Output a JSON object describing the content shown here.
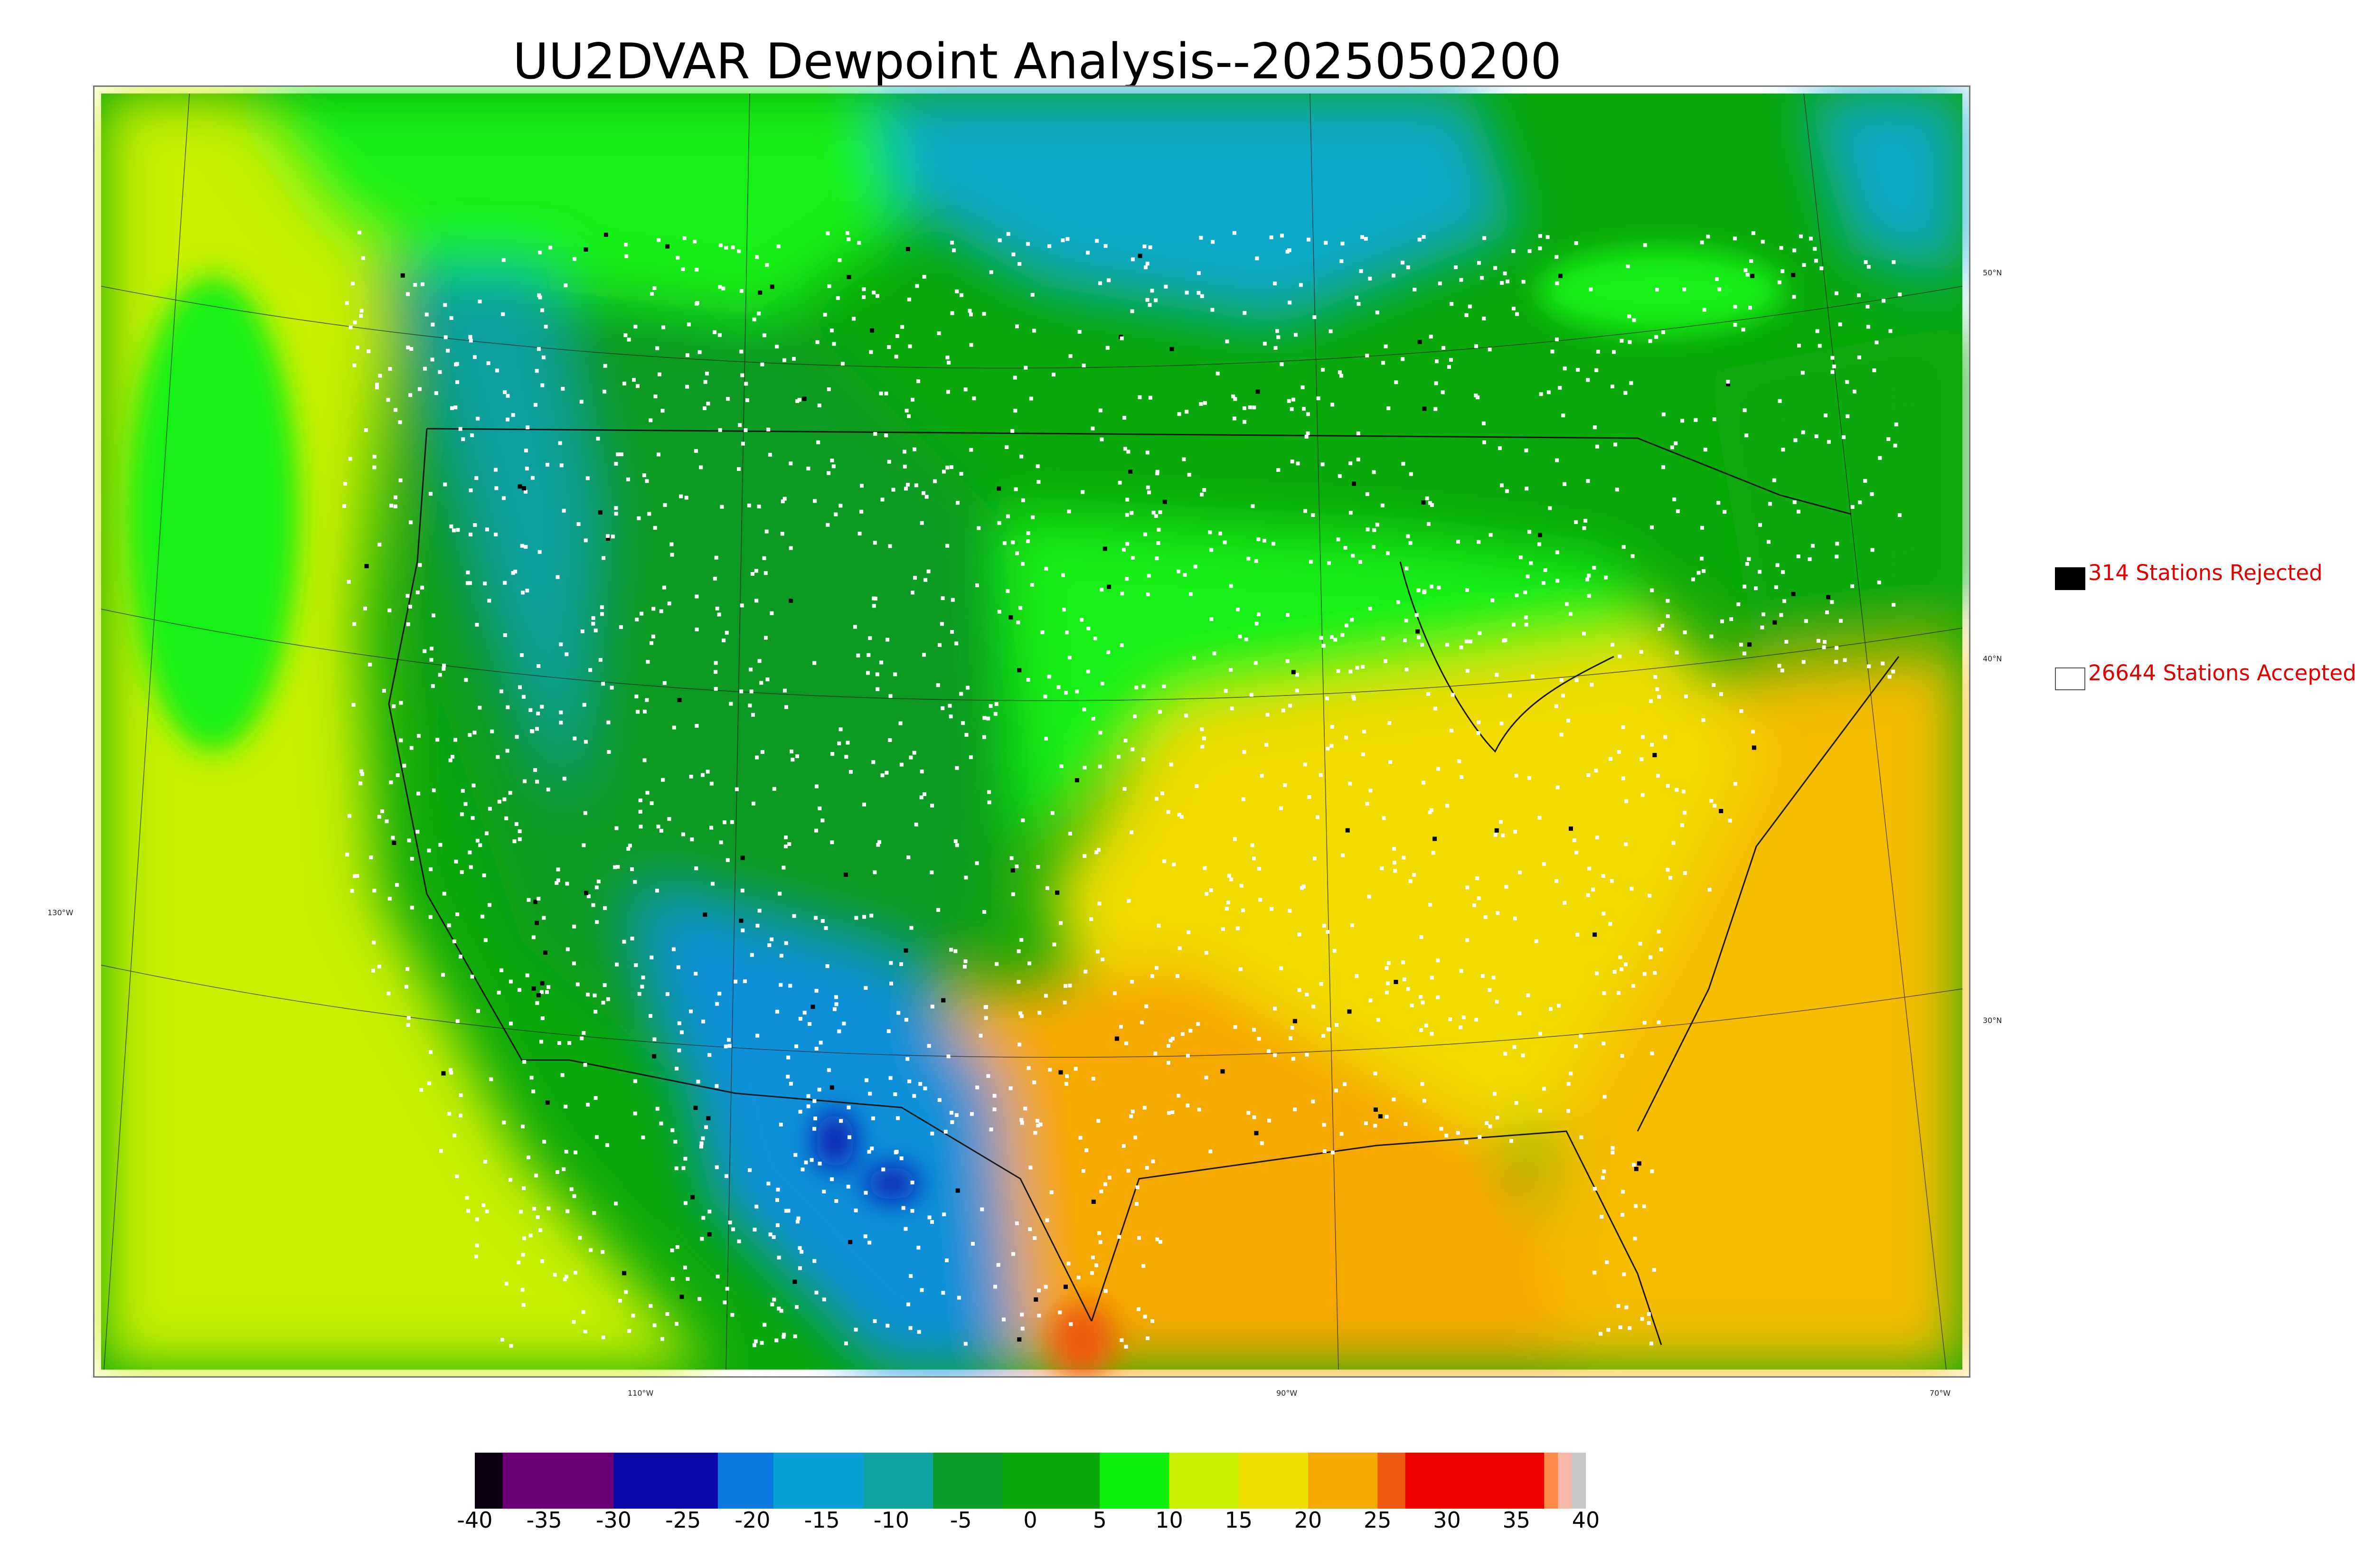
{
  "title": "UU2DVAR Dewpoint Analysis--2025050200",
  "legend": {
    "rejected": {
      "label": "314 Stations Rejected",
      "swatch_color": "#000000"
    },
    "accepted": {
      "label": "26644 Stations Accepted",
      "swatch_color": "#ffffff"
    }
  },
  "graticule_labels": {
    "lat": [
      "50°N",
      "40°N",
      "30°N"
    ],
    "lon_left": "130°W",
    "lon_bottom": [
      "110°W",
      "90°W",
      "70°W"
    ]
  },
  "colorbar": {
    "ticks": [
      "-40",
      "-35",
      "-30",
      "-25",
      "-20",
      "-15",
      "-10",
      "-5",
      "0",
      "5",
      "10",
      "15",
      "20",
      "25",
      "30",
      "35",
      "40"
    ],
    "min": -40,
    "max": 40,
    "color_bands": [
      {
        "from": -40,
        "to": -38,
        "color": "#0a0012"
      },
      {
        "from": -38,
        "to": -30,
        "color": "#6a0075"
      },
      {
        "from": -30,
        "to": -22.5,
        "color": "#0a0aaa"
      },
      {
        "from": -22.5,
        "to": -18.5,
        "color": "#0a78dc"
      },
      {
        "from": -18.5,
        "to": -12,
        "color": "#0aa0d8"
      },
      {
        "from": -12,
        "to": -7,
        "color": "#10a4a0"
      },
      {
        "from": -7,
        "to": -2,
        "color": "#0a9a28"
      },
      {
        "from": -2,
        "to": 5,
        "color": "#0aaa0a"
      },
      {
        "from": 5,
        "to": 10,
        "color": "#0ef00e"
      },
      {
        "from": 10,
        "to": 15,
        "color": "#c8f000"
      },
      {
        "from": 15,
        "to": 20,
        "color": "#f0e000"
      },
      {
        "from": 20,
        "to": 25,
        "color": "#f5a800"
      },
      {
        "from": 25,
        "to": 27,
        "color": "#ee5a10"
      },
      {
        "from": 27,
        "to": 37,
        "color": "#ee0000"
      },
      {
        "from": 37,
        "to": 38,
        "color": "#ff8a4a"
      },
      {
        "from": 38,
        "to": 39,
        "color": "#f6b8a8"
      },
      {
        "from": 39,
        "to": 40,
        "color": "#c8c8c8"
      }
    ]
  },
  "map_colors": {
    "west_ocean": "#c8f000",
    "north_canada": "#0aa80a",
    "canada_bright": "#12f012",
    "hudson_bay": "#10a8c8",
    "rockies": "#0a9a20",
    "southwest_blue": "#1090d8",
    "mexico_deep": "#0a10b0",
    "southeast": "#f0dc00",
    "gulf": "#f5a800",
    "atlantic": "#f5bc00",
    "station_accepted": "#ffffff",
    "station_rejected": "#000000",
    "border_lines": "#1a1a1a"
  }
}
